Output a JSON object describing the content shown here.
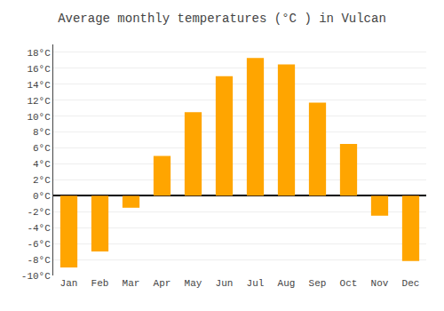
{
  "chart_data": {
    "type": "bar",
    "title": "Average monthly temperatures (°C ) in Vulcan",
    "categories": [
      "Jan",
      "Feb",
      "Mar",
      "Apr",
      "May",
      "Jun",
      "Jul",
      "Aug",
      "Sep",
      "Oct",
      "Nov",
      "Dec"
    ],
    "values": [
      -9.0,
      -7.0,
      -1.5,
      5.0,
      10.5,
      15.0,
      17.3,
      16.5,
      11.7,
      6.5,
      -2.5,
      -8.2
    ],
    "color": "#FFA500",
    "ylim": [
      -10,
      19
    ],
    "yticks": [
      {
        "value": -10,
        "label": "-10°C"
      },
      {
        "value": -8,
        "label": "-8°C"
      },
      {
        "value": -6,
        "label": "-6°C"
      },
      {
        "value": -4,
        "label": "-4°C"
      },
      {
        "value": -2,
        "label": "-2°C"
      },
      {
        "value": 0,
        "label": "0°C"
      },
      {
        "value": 2,
        "label": "2°C"
      },
      {
        "value": 4,
        "label": "4°C"
      },
      {
        "value": 6,
        "label": "6°C"
      },
      {
        "value": 8,
        "label": "8°C"
      },
      {
        "value": 10,
        "label": "10°C"
      },
      {
        "value": 12,
        "label": "12°C"
      },
      {
        "value": 14,
        "label": "14°C"
      },
      {
        "value": 16,
        "label": "16°C"
      },
      {
        "value": 18,
        "label": "18°C"
      }
    ],
    "grid": true
  }
}
